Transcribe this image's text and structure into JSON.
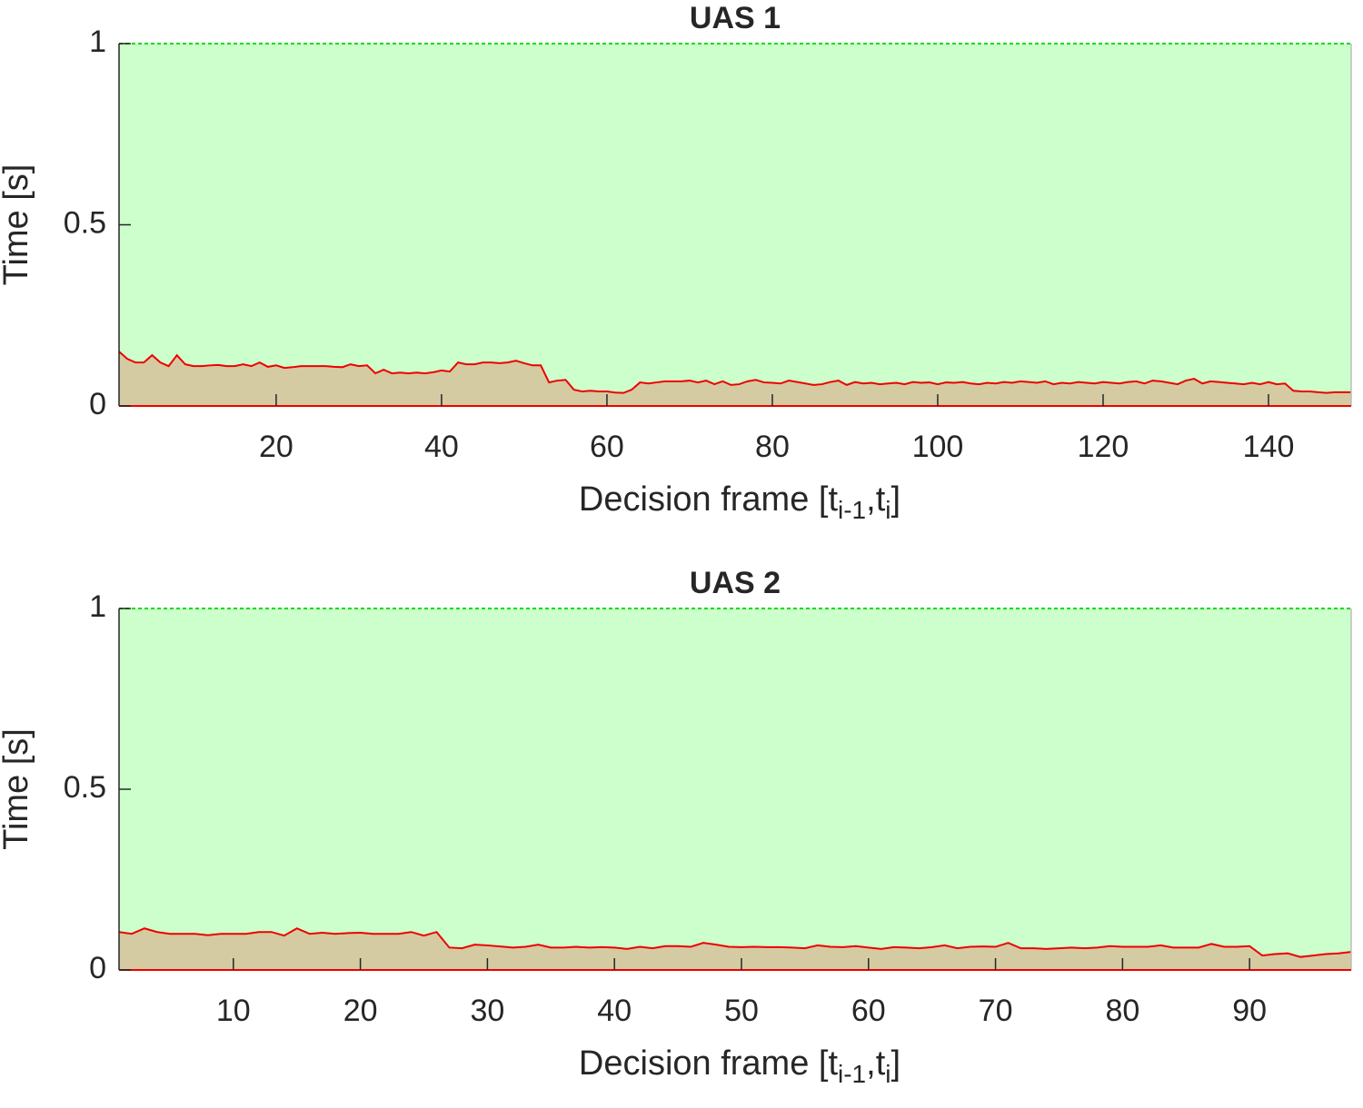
{
  "chart_data": [
    {
      "type": "area",
      "title": "UAS 1",
      "ylabel": "Time [s]",
      "xlabel": [
        "Decision frame [t",
        "i-1",
        ",t",
        "i",
        "]"
      ],
      "xlim": [
        1,
        150
      ],
      "xticks": [
        20,
        40,
        60,
        80,
        100,
        120,
        140
      ],
      "ylim": [
        0,
        1
      ],
      "yticks": [
        0,
        0.5,
        1
      ],
      "series": [
        {
          "color": "#00dd00",
          "fill": "#ccffcc",
          "line_style": "dashed",
          "x": [
            1,
            150
          ],
          "values": [
            1,
            1
          ]
        },
        {
          "color": "#ee0000",
          "fill": "#d5cba2",
          "line_style": "solid",
          "x": [
            1,
            2,
            3,
            4,
            5,
            6,
            7,
            8,
            9,
            10,
            11,
            12,
            13,
            14,
            15,
            16,
            17,
            18,
            19,
            20,
            21,
            22,
            23,
            24,
            25,
            26,
            27,
            28,
            29,
            30,
            31,
            32,
            33,
            34,
            35,
            36,
            37,
            38,
            39,
            40,
            41,
            42,
            43,
            44,
            45,
            46,
            47,
            48,
            49,
            50,
            51,
            52,
            53,
            54,
            55,
            56,
            57,
            58,
            59,
            60,
            61,
            62,
            63,
            64,
            65,
            66,
            67,
            68,
            69,
            70,
            71,
            72,
            73,
            74,
            75,
            76,
            77,
            78,
            79,
            80,
            81,
            82,
            83,
            84,
            85,
            86,
            87,
            88,
            89,
            90,
            91,
            92,
            93,
            94,
            95,
            96,
            97,
            98,
            99,
            100,
            101,
            102,
            103,
            104,
            105,
            106,
            107,
            108,
            109,
            110,
            111,
            112,
            113,
            114,
            115,
            116,
            117,
            118,
            119,
            120,
            121,
            122,
            123,
            124,
            125,
            126,
            127,
            128,
            129,
            130,
            131,
            132,
            133,
            134,
            135,
            136,
            137,
            138,
            139,
            140,
            141,
            142,
            143,
            144,
            145,
            146,
            147,
            148,
            149,
            150
          ],
          "values": [
            0.15,
            0.13,
            0.12,
            0.12,
            0.14,
            0.12,
            0.11,
            0.14,
            0.115,
            0.11,
            0.11,
            0.112,
            0.113,
            0.11,
            0.11,
            0.115,
            0.11,
            0.12,
            0.108,
            0.112,
            0.105,
            0.107,
            0.11,
            0.11,
            0.11,
            0.11,
            0.108,
            0.107,
            0.115,
            0.11,
            0.112,
            0.09,
            0.1,
            0.09,
            0.092,
            0.09,
            0.092,
            0.09,
            0.093,
            0.098,
            0.095,
            0.12,
            0.115,
            0.115,
            0.12,
            0.12,
            0.118,
            0.12,
            0.125,
            0.118,
            0.112,
            0.112,
            0.065,
            0.07,
            0.072,
            0.045,
            0.04,
            0.042,
            0.04,
            0.04,
            0.037,
            0.036,
            0.045,
            0.065,
            0.062,
            0.065,
            0.068,
            0.068,
            0.068,
            0.07,
            0.065,
            0.07,
            0.06,
            0.068,
            0.058,
            0.06,
            0.068,
            0.072,
            0.065,
            0.064,
            0.062,
            0.07,
            0.066,
            0.062,
            0.058,
            0.06,
            0.066,
            0.07,
            0.058,
            0.066,
            0.062,
            0.064,
            0.06,
            0.062,
            0.064,
            0.06,
            0.066,
            0.064,
            0.065,
            0.06,
            0.065,
            0.064,
            0.066,
            0.062,
            0.06,
            0.064,
            0.062,
            0.066,
            0.064,
            0.068,
            0.066,
            0.064,
            0.068,
            0.06,
            0.064,
            0.062,
            0.066,
            0.064,
            0.062,
            0.066,
            0.064,
            0.062,
            0.066,
            0.068,
            0.062,
            0.07,
            0.068,
            0.064,
            0.06,
            0.07,
            0.075,
            0.062,
            0.068,
            0.066,
            0.064,
            0.062,
            0.06,
            0.064,
            0.06,
            0.066,
            0.06,
            0.062,
            0.042,
            0.04,
            0.04,
            0.038,
            0.036,
            0.038,
            0.038,
            0.038
          ]
        }
      ]
    },
    {
      "type": "area",
      "title": "UAS 2",
      "ylabel": "Time [s]",
      "xlabel": [
        "Decision frame [t",
        "i-1",
        ",t",
        "i",
        "]"
      ],
      "xlim": [
        1,
        98
      ],
      "xticks": [
        10,
        20,
        30,
        40,
        50,
        60,
        70,
        80,
        90
      ],
      "ylim": [
        0,
        1
      ],
      "yticks": [
        0,
        0.5,
        1
      ],
      "series": [
        {
          "color": "#00dd00",
          "fill": "#ccffcc",
          "line_style": "dashed",
          "x": [
            1,
            98
          ],
          "values": [
            1,
            1
          ]
        },
        {
          "color": "#ee0000",
          "fill": "#d5cba2",
          "line_style": "solid",
          "x": [
            1,
            2,
            3,
            4,
            5,
            6,
            7,
            8,
            9,
            10,
            11,
            12,
            13,
            14,
            15,
            16,
            17,
            18,
            19,
            20,
            21,
            22,
            23,
            24,
            25,
            26,
            27,
            28,
            29,
            30,
            31,
            32,
            33,
            34,
            35,
            36,
            37,
            38,
            39,
            40,
            41,
            42,
            43,
            44,
            45,
            46,
            47,
            48,
            49,
            50,
            51,
            52,
            53,
            54,
            55,
            56,
            57,
            58,
            59,
            60,
            61,
            62,
            63,
            64,
            65,
            66,
            67,
            68,
            69,
            70,
            71,
            72,
            73,
            74,
            75,
            76,
            77,
            78,
            79,
            80,
            81,
            82,
            83,
            84,
            85,
            86,
            87,
            88,
            89,
            90,
            91,
            92,
            93,
            94,
            95,
            96,
            97,
            98
          ],
          "values": [
            0.105,
            0.1,
            0.115,
            0.105,
            0.1,
            0.1,
            0.1,
            0.096,
            0.1,
            0.1,
            0.1,
            0.105,
            0.105,
            0.095,
            0.115,
            0.1,
            0.103,
            0.1,
            0.102,
            0.103,
            0.1,
            0.1,
            0.1,
            0.105,
            0.095,
            0.105,
            0.062,
            0.06,
            0.07,
            0.068,
            0.065,
            0.062,
            0.064,
            0.07,
            0.062,
            0.062,
            0.064,
            0.062,
            0.063,
            0.062,
            0.058,
            0.064,
            0.06,
            0.066,
            0.066,
            0.064,
            0.075,
            0.07,
            0.064,
            0.063,
            0.064,
            0.063,
            0.063,
            0.062,
            0.06,
            0.068,
            0.064,
            0.063,
            0.066,
            0.062,
            0.058,
            0.063,
            0.062,
            0.06,
            0.063,
            0.068,
            0.06,
            0.064,
            0.065,
            0.064,
            0.075,
            0.06,
            0.06,
            0.058,
            0.06,
            0.062,
            0.06,
            0.062,
            0.066,
            0.064,
            0.064,
            0.064,
            0.068,
            0.062,
            0.062,
            0.062,
            0.072,
            0.064,
            0.064,
            0.066,
            0.04,
            0.044,
            0.046,
            0.036,
            0.04,
            0.044,
            0.046,
            0.05
          ]
        }
      ]
    }
  ]
}
